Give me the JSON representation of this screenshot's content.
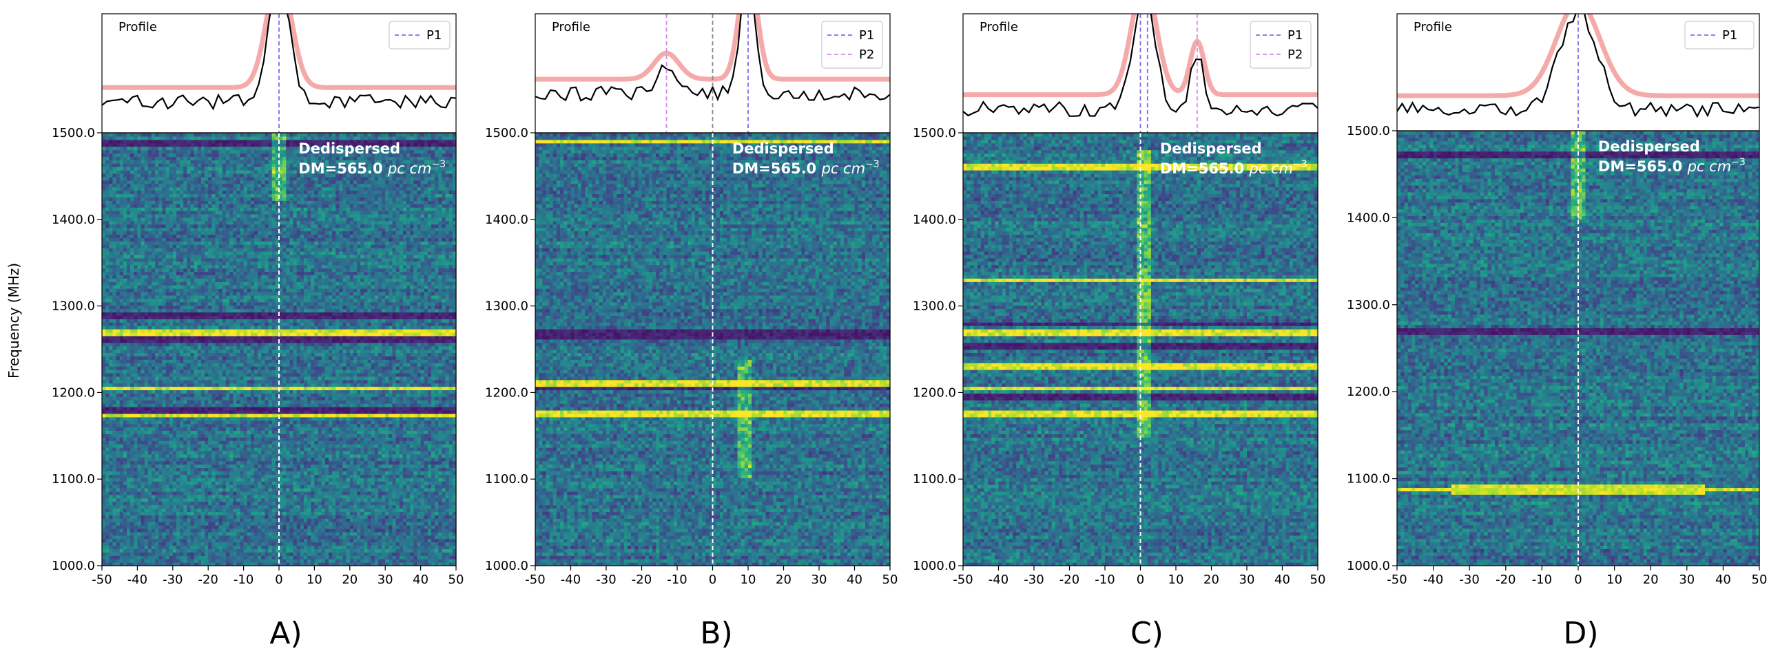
{
  "figure": {
    "ylabel": "Frequency (MHz)"
  },
  "chart_data": [
    {
      "type": "heatmap",
      "panel_label": "A)",
      "profile_label": "Profile",
      "annotation_line1": "Dedispersed",
      "annotation_line2": "DM=565.0",
      "annotation_unit": "pc cm",
      "annotation_exp": "−3",
      "x_ticks": [
        "-50",
        "-40",
        "-30",
        "-20",
        "-10",
        "0",
        "10",
        "20",
        "30",
        "40",
        "50"
      ],
      "y_ticks": [
        "1000.0",
        "1100.0",
        "1200.0",
        "1300.0",
        "1400.0",
        "1500.0"
      ],
      "xlim": [
        -50,
        50
      ],
      "ylim": [
        1000,
        1500
      ],
      "markers": [
        {
          "name": "P1",
          "x": 0,
          "color": "#7b6cf0"
        }
      ],
      "fit": [
        {
          "center": 0,
          "width": 3.5,
          "height": 0.95
        }
      ],
      "baseline": 0.38,
      "bright_bands": [
        1270,
        1205,
        1175
      ],
      "dark_bands": [
        1488,
        1290,
        1262,
        1180
      ],
      "pulse": {
        "x": 0,
        "fmin": 1420,
        "fmax": 1500
      },
      "seed": 11
    },
    {
      "type": "heatmap",
      "panel_label": "B)",
      "profile_label": "Profile",
      "annotation_line1": "Dedispersed",
      "annotation_line2": "DM=565.0",
      "annotation_unit": "pc cm",
      "annotation_exp": "−3",
      "x_ticks": [
        "-50",
        "-40",
        "-30",
        "-20",
        "-10",
        "0",
        "10",
        "20",
        "30",
        "40",
        "50"
      ],
      "y_ticks": [
        "1000.0",
        "1100.0",
        "1200.0",
        "1300.0",
        "1400.0",
        "1500.0"
      ],
      "xlim": [
        -50,
        50
      ],
      "ylim": [
        1000,
        1500
      ],
      "markers": [
        {
          "name": "P1",
          "x": 10,
          "color": "#7b6cf0"
        },
        {
          "name": "P2",
          "x": -13,
          "color": "#d48be8"
        }
      ],
      "fit": [
        {
          "center": 10,
          "width": 2.5,
          "height": 0.95
        },
        {
          "center": -13,
          "width": 3.5,
          "height": 0.22
        }
      ],
      "baseline": 0.45,
      "bright_bands": [
        1490,
        1210,
        1175
      ],
      "dark_bands": [
        1272,
        1265,
        1205
      ],
      "pulse": {
        "x": 9,
        "fmin": 1100,
        "fmax": 1240
      },
      "seed": 23
    },
    {
      "type": "heatmap",
      "panel_label": "C)",
      "profile_label": "Profile",
      "annotation_line1": "Dedispersed",
      "annotation_line2": "DM=565.0",
      "annotation_unit": "pc cm",
      "annotation_exp": "−3",
      "x_ticks": [
        "-50",
        "-40",
        "-30",
        "-20",
        "-10",
        "0",
        "10",
        "20",
        "30",
        "40",
        "50"
      ],
      "y_ticks": [
        "1000.0",
        "1100.0",
        "1200.0",
        "1300.0",
        "1400.0",
        "1500.0"
      ],
      "xlim": [
        -50,
        50
      ],
      "ylim": [
        1000,
        1500
      ],
      "markers": [
        {
          "name": "P1",
          "x": 2,
          "color": "#7b6cf0"
        },
        {
          "name": "P2",
          "x": 16,
          "color": "#d48be8"
        },
        {
          "name": "",
          "x": 0,
          "color": "#7b6cf0"
        }
      ],
      "fit": [
        {
          "center": 1,
          "width": 3.5,
          "height": 0.95
        },
        {
          "center": 16,
          "width": 2,
          "height": 0.45
        }
      ],
      "baseline": 0.32,
      "bright_bands": [
        1460,
        1330,
        1270,
        1230,
        1205,
        1175
      ],
      "dark_bands": [
        1280,
        1255,
        1195
      ],
      "pulse": {
        "x": 1,
        "fmin": 1150,
        "fmax": 1480
      },
      "seed": 37
    },
    {
      "type": "heatmap",
      "panel_label": "D)",
      "profile_label": "Profile",
      "annotation_line1": "Dedispersed",
      "annotation_line2": "DM=565.0",
      "annotation_unit": "pc cm",
      "annotation_exp": "−3",
      "x_ticks": [
        "-50",
        "-40",
        "-30",
        "-20",
        "-10",
        "0",
        "10",
        "20",
        "30",
        "40",
        "50"
      ],
      "y_ticks": [
        "1000.0",
        "1100.0",
        "1200.0",
        "1300.0",
        "1400.0",
        "1500.0"
      ],
      "xlim": [
        -50,
        50
      ],
      "ylim": [
        1000,
        1500
      ],
      "markers": [
        {
          "name": "P1",
          "x": 0,
          "color": "#7b6cf0"
        }
      ],
      "fit": [
        {
          "center": 0,
          "width": 6,
          "height": 0.8
        }
      ],
      "baseline": 0.3,
      "bright_bands": [
        1088
      ],
      "dark_bands": [
        1472,
        1270
      ],
      "pulse": {
        "x": 0,
        "fmin": 1400,
        "fmax": 1500
      },
      "seed": 51
    }
  ]
}
